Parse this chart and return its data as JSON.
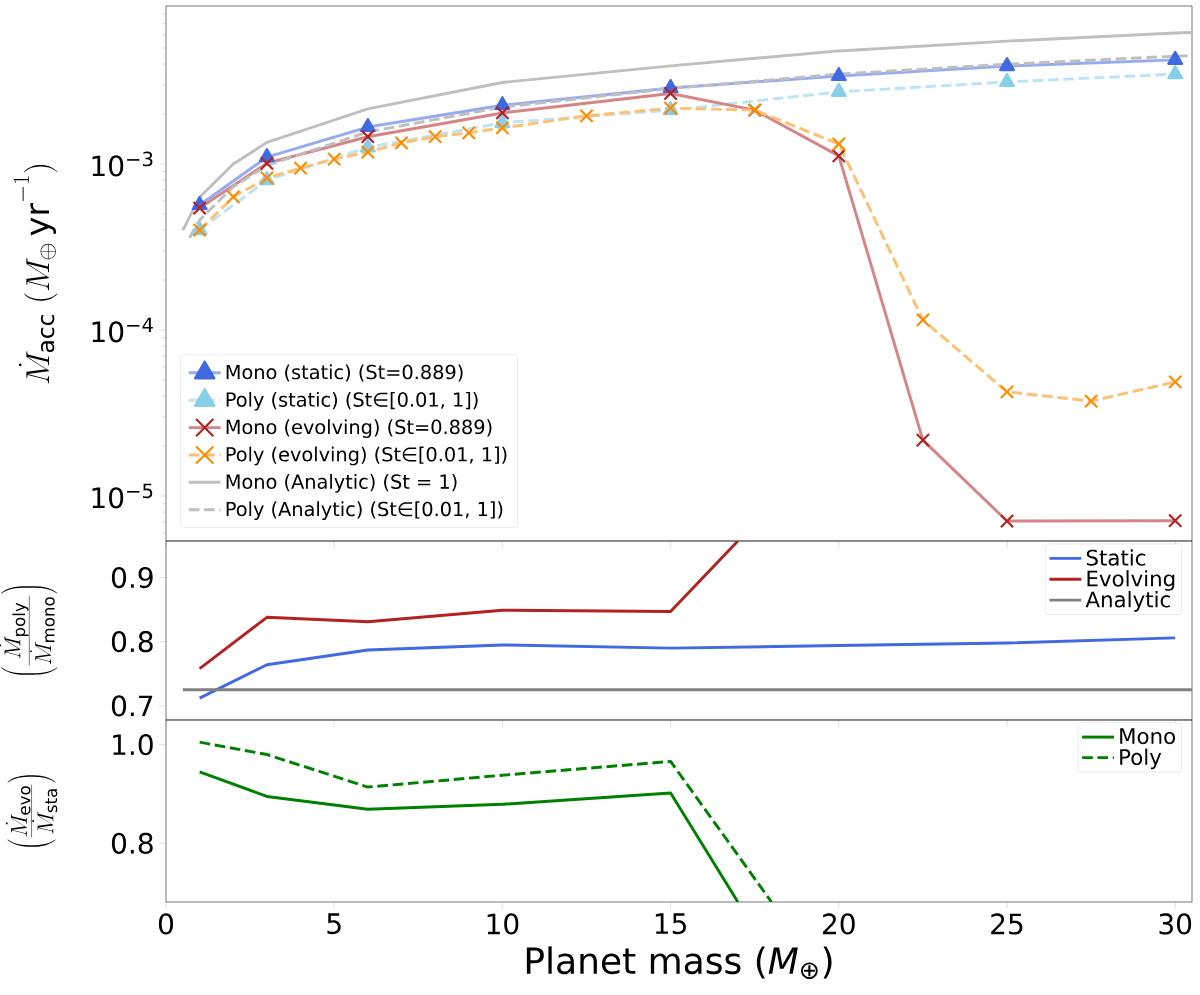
{
  "chart_data": [
    {
      "type": "line",
      "ylabel": "\\dot{M}_{\\mathrm{acc}}\\;(M_{\\oplus}\\,\\mathrm{yr}^{-1})",
      "log": "y",
      "xlim": [
        0,
        30.5
      ],
      "xticks": [
        0,
        5,
        10,
        15,
        20,
        25,
        30
      ],
      "ylim": [
        5.36e-06,
        0.00895
      ],
      "yticks": [
        {
          "value": 1e-05,
          "label": "10$^{−5}$"
        },
        {
          "value": 0.0001,
          "label": "10$^{−4}$"
        },
        {
          "value": 0.001,
          "label": "10$^{−3}$"
        }
      ],
      "tick_labels": "y",
      "legend": "bottom left",
      "series": [
        {
          "name": "Mono (static) (St=0.889)",
          "color": "#4169e1",
          "marker": "triangle",
          "line_style": "solid",
          "x": [
            1,
            3,
            6,
            10,
            15,
            20,
            25,
            30
          ],
          "values": [
            0.000566,
            0.0011,
            0.00167,
            0.00226,
            0.00287,
            0.00339,
            0.00389,
            0.00424
          ]
        },
        {
          "name": "Poly (static) (St∈[0.01, 1])",
          "color": "#87ceeb",
          "marker": "triangle",
          "line_style": "dashed",
          "x": [
            1,
            3,
            6,
            10,
            15,
            20,
            25,
            30
          ],
          "values": [
            0.0004,
            0.0008,
            0.00126,
            0.00177,
            0.00211,
            0.00272,
            0.00312,
            0.00348
          ]
        },
        {
          "name": "Mono (evolving) (St=0.889)",
          "color": "#b22222",
          "marker": "cross",
          "line_style": "solid",
          "x": [
            1,
            3,
            6,
            10,
            15,
            17.5,
            20,
            22.5,
            25,
            30
          ],
          "values": [
            0.000543,
            0.00101,
            0.00146,
            0.00203,
            0.00266,
            0.00211,
            0.00112,
            2.17e-05,
            7.07e-06,
            7.1e-06
          ]
        },
        {
          "name": "Poly (evolving) (St∈[0.01, 1])",
          "color": "#ff8c00",
          "marker": "cross",
          "line_style": "dashed",
          "x": [
            1,
            2,
            3,
            4,
            5,
            6,
            7,
            8,
            9,
            10,
            12.5,
            15,
            17.5,
            20,
            22.5,
            25,
            27.5,
            30
          ],
          "values": [
            0.0004,
            0.000633,
            0.000824,
            0.000946,
            0.00107,
            0.00118,
            0.00134,
            0.00146,
            0.00154,
            0.00165,
            0.00195,
            0.00217,
            0.00211,
            0.00132,
            0.000115,
            4.24e-05,
            3.73e-05,
            4.87e-05
          ]
        },
        {
          "name": "Mono (Analytic) (St = 1)",
          "color": "#bfbfbf",
          "marker": "none",
          "line_style": "solid",
          "x": [
            0.5,
            1,
            2,
            3,
            6,
            10,
            15,
            20,
            25,
            30,
            30.5
          ],
          "values": [
            0.0004,
            0.00063,
            0.001,
            0.00135,
            0.00215,
            0.0031,
            0.0039,
            0.0048,
            0.0055,
            0.00615,
            0.0062
          ]
        },
        {
          "name": "Poly (Analytic) (St∈[0.01, 1])",
          "color": "#bfbfbf",
          "marker": "none",
          "line_style": "dashed",
          "x": [
            0.7,
            1,
            2,
            3,
            6,
            10,
            15,
            20,
            25,
            30,
            30.5
          ],
          "values": [
            0.00036,
            0.00046,
            0.00073,
            0.00098,
            0.00156,
            0.0022,
            0.00285,
            0.00348,
            0.00399,
            0.00446,
            0.0045
          ]
        }
      ]
    },
    {
      "type": "line",
      "ylabel": "\\left(\\frac{\\dot{M}_{\\mathrm{poly}}}{\\dot{M}_{\\mathrm{mono}}}\\right)",
      "xlim": [
        0,
        30.5
      ],
      "xticks": [
        0,
        5,
        10,
        15,
        20,
        25,
        30
      ],
      "ylim": [
        0.678,
        0.957
      ],
      "yticks": [
        0.7,
        0.8,
        0.9
      ],
      "tick_labels": "y",
      "legend": "top right",
      "series": [
        {
          "name": "Static",
          "color": "#4169e1",
          "x": [
            1,
            3,
            6,
            10,
            15,
            20,
            25,
            30
          ],
          "values": [
            0.712,
            0.764,
            0.787,
            0.795,
            0.79,
            0.794,
            0.798,
            0.806
          ]
        },
        {
          "name": "Evolving",
          "color": "#b22222",
          "x": [
            1,
            3,
            6,
            10,
            15,
            17
          ],
          "values": [
            0.758,
            0.838,
            0.831,
            0.849,
            0.847,
            0.957
          ]
        },
        {
          "name": "Analytic",
          "color": "#808080",
          "x": [
            0.5,
            30.5
          ],
          "values": [
            0.725,
            0.725
          ]
        }
      ]
    },
    {
      "type": "line",
      "ylabel": "\\left(\\frac{\\dot{M}_{\\mathrm{evo}}}{\\dot{M}_{\\mathrm{sta}}}\\right)",
      "xlabel": "Planet mass (*M*$_{⊕}$)",
      "xlim": [
        0,
        30.5
      ],
      "xticks": [
        0,
        5,
        10,
        15,
        20,
        25,
        30
      ],
      "ylim": [
        0.681,
        1.05
      ],
      "yticks": [
        {
          "value": 0.8,
          "label": "0.8"
        },
        {
          "value": 1.0,
          "label": "1.0"
        }
      ],
      "legend": "top right",
      "series": [
        {
          "name": "Mono",
          "color": "#008000",
          "line_style": "solid",
          "x": [
            1,
            3,
            6,
            10,
            15,
            17
          ],
          "values": [
            0.945,
            0.895,
            0.869,
            0.879,
            0.902,
            0.681
          ]
        },
        {
          "name": "Poly",
          "color": "#008000",
          "line_style": "dashed",
          "x": [
            1,
            3,
            6,
            10,
            15,
            18
          ],
          "values": [
            1.005,
            0.98,
            0.914,
            0.938,
            0.966,
            0.681
          ]
        }
      ]
    }
  ]
}
